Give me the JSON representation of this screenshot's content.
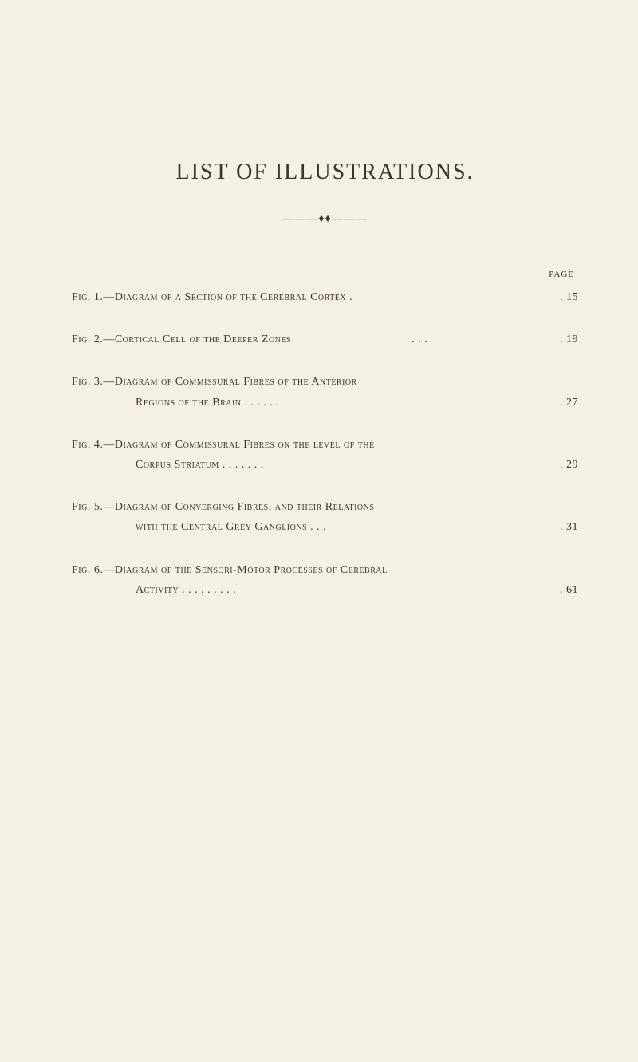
{
  "title": "LIST OF ILLUSTRATIONS.",
  "divider": "———♦♦———",
  "page_header": "PAGE",
  "entries": [
    {
      "line1": "Fig. 1.—Diagram of a Section of the Cerebral Cortex .",
      "line1_dots": "",
      "page": ". 15",
      "has_continuation": false
    },
    {
      "line1": "Fig. 2.—Cortical Cell of the Deeper Zones",
      "line1_dots": ".     .     .",
      "page": ". 19",
      "has_continuation": false
    },
    {
      "line1": "Fig. 3.—Diagram of Commissural Fibres of the Anterior",
      "line2": "Regions of the Brain .     .     .     .     .     .",
      "page": ". 27",
      "has_continuation": true
    },
    {
      "line1": "Fig. 4.—Diagram of Commissural Fibres on the level of the",
      "line2": "Corpus Striatum     .     .     .     .     .     .     .",
      "page": ". 29",
      "has_continuation": true
    },
    {
      "line1": "Fig. 5.—Diagram of Converging Fibres, and their Relations",
      "line2": "with the Central Grey Ganglions    .     .     .",
      "page": ". 31",
      "has_continuation": true
    },
    {
      "line1": "Fig. 6.—Diagram of the Sensori-Motor Processes of Cerebral",
      "line2": "Activity    .     .     .     .     .     .     .     .     .",
      "page": ". 61",
      "has_continuation": true
    }
  ]
}
